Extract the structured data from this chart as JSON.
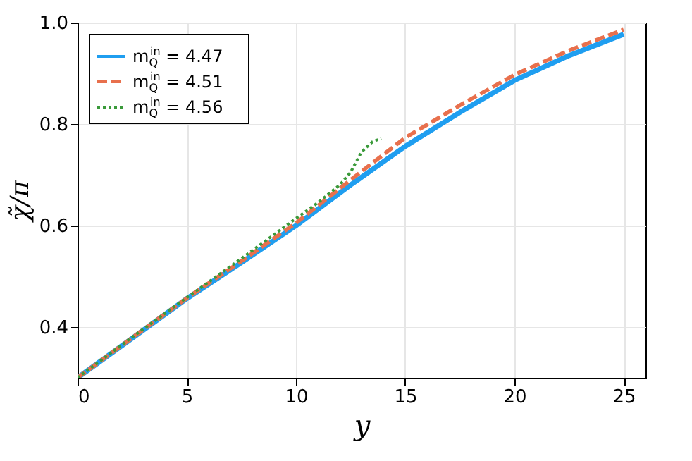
{
  "chart_data": {
    "type": "line",
    "xlabel": "y",
    "ylabel": "χ̃/π",
    "xlim": [
      0,
      26
    ],
    "ylim": [
      0.3,
      1.0
    ],
    "xticks": [
      0,
      5,
      10,
      15,
      20,
      25
    ],
    "yticks": [
      0.4,
      0.6,
      0.8,
      {
        "value": 1,
        "label": "1.0"
      }
    ],
    "grid": true,
    "legend": "top left",
    "series": [
      {
        "name": "m$_{Q}$$^{in}$ = 4.47",
        "color": "#1f9ef0",
        "line_style": "solid",
        "x": [
          0,
          2.5,
          5,
          7.5,
          10,
          12.5,
          15,
          17.5,
          20,
          22.5,
          25
        ],
        "values": [
          0.3,
          0.378,
          0.456,
          0.527,
          0.6,
          0.68,
          0.756,
          0.823,
          0.886,
          0.935,
          0.977
        ]
      },
      {
        "name": "m$_{Q}$$^{in}$ = 4.51",
        "color": "#e8704d",
        "line_style": "dashed",
        "x": [
          0,
          2.5,
          5,
          7.5,
          10,
          12.5,
          15,
          17.5,
          20,
          22.5,
          25
        ],
        "values": [
          0.3,
          0.379,
          0.457,
          0.53,
          0.605,
          0.69,
          0.773,
          0.837,
          0.897,
          0.945,
          0.986
        ]
      },
      {
        "name": "m$_{Q}$$^{in}$ = 4.56",
        "color": "#3a9a3a",
        "line_style": "dotted",
        "x": [
          0,
          2.5,
          5,
          7.5,
          10,
          11,
          12,
          12.5,
          13,
          13.5,
          13.9
        ],
        "values": [
          0.3,
          0.38,
          0.458,
          0.535,
          0.614,
          0.645,
          0.68,
          0.705,
          0.745,
          0.765,
          0.772
        ]
      }
    ]
  }
}
